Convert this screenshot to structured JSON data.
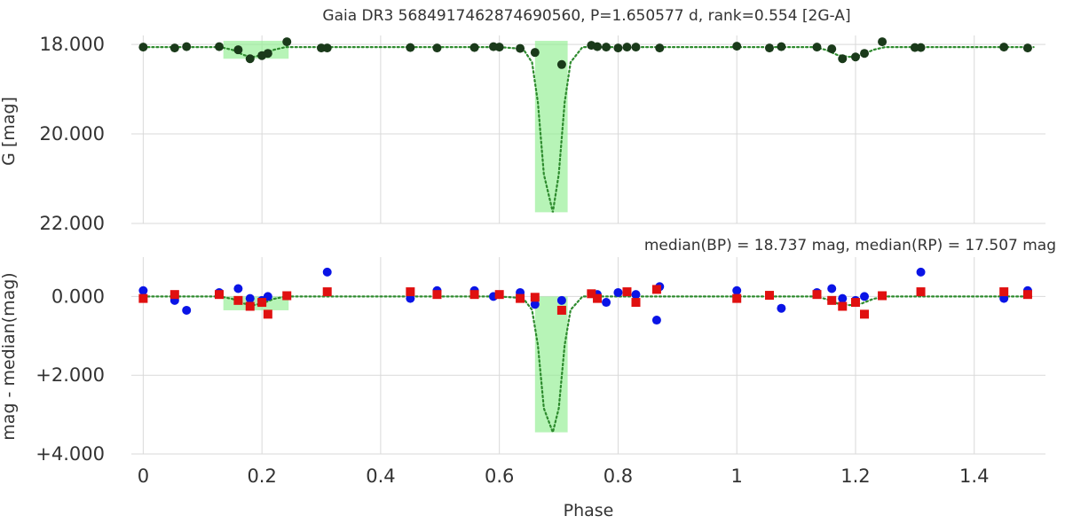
{
  "chart_data": [
    {
      "type": "scatter",
      "title": "Gaia DR3 5684917462874690560, P=1.650577 d, rank=0.554 [2G-A]",
      "xlabel": "",
      "ylabel": "G [mag]",
      "xlim": [
        -0.02,
        1.52
      ],
      "ylim": [
        17.8,
        22.0
      ],
      "y_inverted": true,
      "y_ticks": [
        18.0,
        20.0,
        22.0
      ],
      "y_tick_labels": [
        "18.000",
        "20.000",
        "22.000"
      ],
      "grid": true,
      "colors": {
        "points": "#1a3a1a",
        "model": "#2e8b2e",
        "band": "#90ee90"
      },
      "highlight_bands": [
        {
          "x0": 0.135,
          "x1": 0.245,
          "y0": 17.92,
          "y1": 18.32
        },
        {
          "x0": 0.66,
          "x1": 0.715,
          "y0": 17.92,
          "y1": 21.75
        }
      ],
      "series": [
        {
          "kind": "points",
          "x": [
            0.0,
            0.053,
            0.073,
            0.128,
            0.16,
            0.18,
            0.2,
            0.21,
            0.242,
            0.3,
            0.31,
            0.45,
            0.495,
            0.558,
            0.59,
            0.6,
            0.635,
            0.66,
            0.705,
            0.755,
            0.765,
            0.78,
            0.8,
            0.815,
            0.83,
            0.87,
            1.0,
            1.055,
            1.075,
            1.135,
            1.16,
            1.178,
            1.2,
            1.215,
            1.245,
            1.3,
            1.31,
            1.45,
            1.49
          ],
          "y": [
            18.06,
            18.08,
            18.05,
            18.05,
            18.12,
            18.32,
            18.25,
            18.2,
            17.94,
            18.08,
            18.08,
            18.07,
            18.08,
            18.07,
            18.05,
            18.06,
            18.09,
            18.18,
            18.45,
            18.02,
            18.05,
            18.06,
            18.08,
            18.06,
            18.06,
            18.08,
            18.04,
            18.08,
            18.05,
            18.06,
            18.1,
            18.32,
            18.28,
            18.2,
            17.94,
            18.07,
            18.07,
            18.06,
            18.08
          ]
        },
        {
          "kind": "model",
          "x": [
            0.0,
            0.13,
            0.15,
            0.17,
            0.185,
            0.2,
            0.22,
            0.24,
            0.26,
            0.6,
            0.64,
            0.655,
            0.665,
            0.675,
            0.69,
            0.7,
            0.71,
            0.72,
            0.74,
            1.1,
            1.13,
            1.15,
            1.17,
            1.19,
            1.21,
            1.23,
            1.25,
            1.5
          ],
          "y": [
            18.06,
            18.06,
            18.12,
            18.24,
            18.28,
            18.24,
            18.12,
            18.06,
            18.06,
            18.06,
            18.1,
            18.4,
            19.3,
            20.9,
            21.75,
            20.9,
            19.3,
            18.4,
            18.06,
            18.06,
            18.06,
            18.12,
            18.24,
            18.28,
            18.24,
            18.12,
            18.06,
            18.06
          ]
        }
      ]
    },
    {
      "type": "scatter",
      "annotation": "median(BP) = 18.737 mag, median(RP) = 17.507 mag",
      "xlabel": "Phase",
      "ylabel": "mag - median(mag)",
      "xlim": [
        -0.02,
        1.52
      ],
      "ylim": [
        -1.0,
        4.0
      ],
      "y_inverted": true,
      "y_ticks": [
        0.0,
        2.0,
        4.0
      ],
      "y_tick_labels": [
        "0.000",
        "+2.000",
        "+4.000"
      ],
      "x_ticks": [
        0,
        0.2,
        0.4,
        0.6,
        0.8,
        1,
        1.2,
        1.4
      ],
      "x_tick_labels": [
        "0",
        "0.2",
        "0.4",
        "0.6",
        "0.8",
        "1",
        "1.2",
        "1.4"
      ],
      "grid": true,
      "colors": {
        "bp": "#0a14e6",
        "rp": "#e01010",
        "model": "#2e8b2e",
        "band": "#90ee90"
      },
      "highlight_bands": [
        {
          "x0": 0.135,
          "x1": 0.245,
          "y0": 0.0,
          "y1": 0.35
        },
        {
          "x0": 0.66,
          "x1": 0.715,
          "y0": 0.0,
          "y1": 3.45
        }
      ],
      "series": [
        {
          "name": "BP",
          "kind": "circles",
          "x": [
            0.0,
            0.053,
            0.073,
            0.128,
            0.16,
            0.18,
            0.2,
            0.21,
            0.31,
            0.45,
            0.495,
            0.558,
            0.59,
            0.635,
            0.66,
            0.705,
            0.765,
            0.78,
            0.8,
            0.83,
            0.865,
            0.87,
            1.0,
            1.075,
            1.135,
            1.16,
            1.178,
            1.2,
            1.215,
            1.31,
            1.45,
            1.49
          ],
          "y": [
            -0.15,
            0.1,
            0.35,
            -0.1,
            -0.2,
            0.05,
            0.1,
            0.0,
            -0.62,
            0.05,
            -0.15,
            -0.15,
            0.0,
            -0.1,
            0.2,
            0.1,
            -0.05,
            0.15,
            -0.1,
            -0.05,
            0.6,
            -0.25,
            -0.15,
            0.3,
            -0.1,
            -0.2,
            0.05,
            0.1,
            0.0,
            -0.62,
            0.05,
            -0.15
          ]
        },
        {
          "name": "RP",
          "kind": "squares",
          "x": [
            0.0,
            0.053,
            0.128,
            0.16,
            0.18,
            0.2,
            0.21,
            0.242,
            0.31,
            0.45,
            0.495,
            0.558,
            0.6,
            0.635,
            0.66,
            0.705,
            0.755,
            0.765,
            0.815,
            0.83,
            0.865,
            1.0,
            1.055,
            1.135,
            1.16,
            1.178,
            1.2,
            1.215,
            1.245,
            1.31,
            1.45,
            1.49
          ],
          "y": [
            0.05,
            -0.05,
            -0.05,
            0.1,
            0.25,
            0.15,
            0.45,
            -0.02,
            -0.12,
            -0.12,
            -0.05,
            -0.05,
            -0.05,
            0.05,
            0.02,
            0.35,
            -0.07,
            0.05,
            -0.12,
            0.15,
            -0.18,
            0.05,
            -0.03,
            -0.05,
            0.1,
            0.25,
            0.15,
            0.45,
            -0.02,
            -0.12,
            -0.12,
            -0.05
          ]
        },
        {
          "kind": "model",
          "x": [
            0.0,
            0.13,
            0.15,
            0.17,
            0.185,
            0.2,
            0.22,
            0.24,
            0.26,
            0.6,
            0.64,
            0.655,
            0.665,
            0.675,
            0.69,
            0.7,
            0.71,
            0.72,
            0.74,
            1.1,
            1.13,
            1.15,
            1.17,
            1.19,
            1.21,
            1.23,
            1.25,
            1.5
          ],
          "y": [
            0.0,
            0.0,
            0.06,
            0.18,
            0.22,
            0.18,
            0.06,
            0.0,
            0.0,
            0.0,
            0.04,
            0.34,
            1.24,
            2.84,
            3.45,
            2.84,
            1.24,
            0.34,
            0.0,
            0.0,
            0.0,
            0.06,
            0.18,
            0.22,
            0.18,
            0.06,
            0.0,
            0.0
          ]
        }
      ]
    }
  ]
}
